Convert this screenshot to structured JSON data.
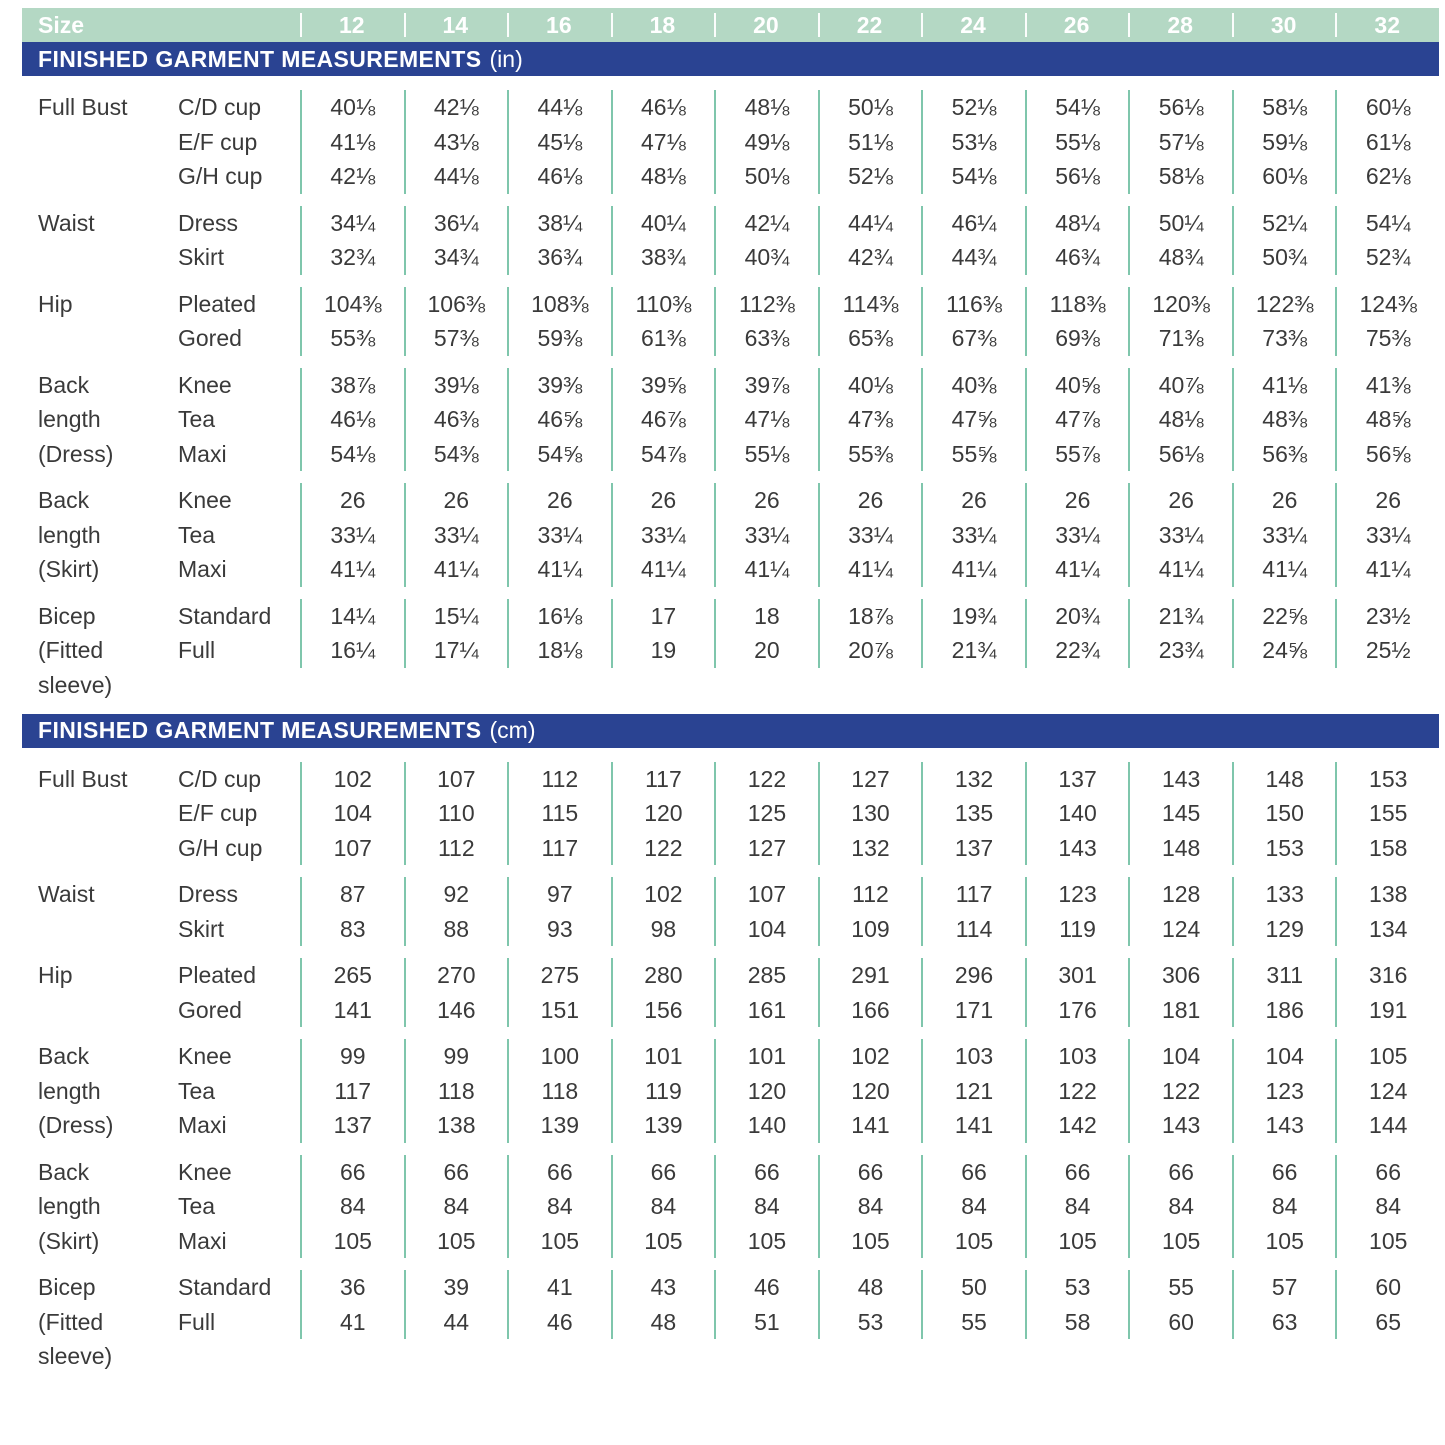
{
  "colors": {
    "mint": "#b4d8c4",
    "navy": "#2a4392",
    "teal_divider": "#7fc6ac",
    "text": "#3a3a3a"
  },
  "size_header": {
    "label": "Size",
    "sizes": [
      "12",
      "14",
      "16",
      "18",
      "20",
      "22",
      "24",
      "26",
      "28",
      "30",
      "32"
    ]
  },
  "tables": [
    {
      "title": "FINISHED GARMENT MEASUREMENTS",
      "unit": "(in)",
      "groups": [
        {
          "label_lines": [
            "Full Bust"
          ],
          "rows": [
            {
              "sub": "C/D cup",
              "values": [
                "40⅛",
                "42⅛",
                "44⅛",
                "46⅛",
                "48⅛",
                "50⅛",
                "52⅛",
                "54⅛",
                "56⅛",
                "58⅛",
                "60⅛"
              ]
            },
            {
              "sub": "E/F cup",
              "values": [
                "41⅛",
                "43⅛",
                "45⅛",
                "47⅛",
                "49⅛",
                "51⅛",
                "53⅛",
                "55⅛",
                "57⅛",
                "59⅛",
                "61⅛"
              ]
            },
            {
              "sub": "G/H cup",
              "values": [
                "42⅛",
                "44⅛",
                "46⅛",
                "48⅛",
                "50⅛",
                "52⅛",
                "54⅛",
                "56⅛",
                "58⅛",
                "60⅛",
                "62⅛"
              ]
            }
          ]
        },
        {
          "label_lines": [
            "Waist"
          ],
          "rows": [
            {
              "sub": "Dress",
              "values": [
                "34¼",
                "36¼",
                "38¼",
                "40¼",
                "42¼",
                "44¼",
                "46¼",
                "48¼",
                "50¼",
                "52¼",
                "54¼"
              ]
            },
            {
              "sub": "Skirt",
              "values": [
                "32¾",
                "34¾",
                "36¾",
                "38¾",
                "40¾",
                "42¾",
                "44¾",
                "46¾",
                "48¾",
                "50¾",
                "52¾"
              ]
            }
          ]
        },
        {
          "label_lines": [
            "Hip"
          ],
          "rows": [
            {
              "sub": "Pleated",
              "values": [
                "104⅜",
                "106⅜",
                "108⅜",
                "110⅜",
                "112⅜",
                "114⅜",
                "116⅜",
                "118⅜",
                "120⅜",
                "122⅜",
                "124⅜"
              ]
            },
            {
              "sub": "Gored",
              "values": [
                "55⅜",
                "57⅜",
                "59⅜",
                "61⅜",
                "63⅜",
                "65⅜",
                "67⅜",
                "69⅜",
                "71⅜",
                "73⅜",
                "75⅜"
              ]
            }
          ]
        },
        {
          "label_lines": [
            "Back",
            "length",
            "(Dress)"
          ],
          "rows": [
            {
              "sub": "Knee",
              "values": [
                "38⅞",
                "39⅛",
                "39⅜",
                "39⅝",
                "39⅞",
                "40⅛",
                "40⅜",
                "40⅝",
                "40⅞",
                "41⅛",
                "41⅜"
              ]
            },
            {
              "sub": "Tea",
              "values": [
                "46⅛",
                "46⅜",
                "46⅝",
                "46⅞",
                "47⅛",
                "47⅜",
                "47⅝",
                "47⅞",
                "48⅛",
                "48⅜",
                "48⅝"
              ]
            },
            {
              "sub": "Maxi",
              "values": [
                "54⅛",
                "54⅜",
                "54⅝",
                "54⅞",
                "55⅛",
                "55⅜",
                "55⅝",
                "55⅞",
                "56⅛",
                "56⅜",
                "56⅝"
              ]
            }
          ]
        },
        {
          "label_lines": [
            "Back",
            "length",
            "(Skirt)"
          ],
          "rows": [
            {
              "sub": "Knee",
              "values": [
                "26",
                "26",
                "26",
                "26",
                "26",
                "26",
                "26",
                "26",
                "26",
                "26",
                "26"
              ]
            },
            {
              "sub": "Tea",
              "values": [
                "33¼",
                "33¼",
                "33¼",
                "33¼",
                "33¼",
                "33¼",
                "33¼",
                "33¼",
                "33¼",
                "33¼",
                "33¼"
              ]
            },
            {
              "sub": "Maxi",
              "values": [
                "41¼",
                "41¼",
                "41¼",
                "41¼",
                "41¼",
                "41¼",
                "41¼",
                "41¼",
                "41¼",
                "41¼",
                "41¼"
              ]
            }
          ]
        },
        {
          "label_lines": [
            "Bicep",
            "(Fitted",
            "sleeve)"
          ],
          "rows": [
            {
              "sub": "Standard",
              "values": [
                "14¼",
                "15¼",
                "16⅛",
                "17",
                "18",
                "18⅞",
                "19¾",
                "20¾",
                "21¾",
                "22⅝",
                "23½"
              ]
            },
            {
              "sub": "Full",
              "values": [
                "16¼",
                "17¼",
                "18⅛",
                "19",
                "20",
                "20⅞",
                "21¾",
                "22¾",
                "23¾",
                "24⅝",
                "25½"
              ]
            }
          ]
        }
      ]
    },
    {
      "title": "FINISHED GARMENT MEASUREMENTS",
      "unit": "(cm)",
      "groups": [
        {
          "label_lines": [
            "Full Bust"
          ],
          "rows": [
            {
              "sub": "C/D cup",
              "values": [
                "102",
                "107",
                "112",
                "117",
                "122",
                "127",
                "132",
                "137",
                "143",
                "148",
                "153"
              ]
            },
            {
              "sub": "E/F cup",
              "values": [
                "104",
                "110",
                "115",
                "120",
                "125",
                "130",
                "135",
                "140",
                "145",
                "150",
                "155"
              ]
            },
            {
              "sub": "G/H cup",
              "values": [
                "107",
                "112",
                "117",
                "122",
                "127",
                "132",
                "137",
                "143",
                "148",
                "153",
                "158"
              ]
            }
          ]
        },
        {
          "label_lines": [
            "Waist"
          ],
          "rows": [
            {
              "sub": "Dress",
              "values": [
                "87",
                "92",
                "97",
                "102",
                "107",
                "112",
                "117",
                "123",
                "128",
                "133",
                "138"
              ]
            },
            {
              "sub": "Skirt",
              "values": [
                "83",
                "88",
                "93",
                "98",
                "104",
                "109",
                "114",
                "119",
                "124",
                "129",
                "134"
              ]
            }
          ]
        },
        {
          "label_lines": [
            "Hip"
          ],
          "rows": [
            {
              "sub": "Pleated",
              "values": [
                "265",
                "270",
                "275",
                "280",
                "285",
                "291",
                "296",
                "301",
                "306",
                "311",
                "316"
              ]
            },
            {
              "sub": "Gored",
              "values": [
                "141",
                "146",
                "151",
                "156",
                "161",
                "166",
                "171",
                "176",
                "181",
                "186",
                "191"
              ]
            }
          ]
        },
        {
          "label_lines": [
            "Back",
            "length",
            "(Dress)"
          ],
          "rows": [
            {
              "sub": "Knee",
              "values": [
                "99",
                "99",
                "100",
                "101",
                "101",
                "102",
                "103",
                "103",
                "104",
                "104",
                "105"
              ]
            },
            {
              "sub": "Tea",
              "values": [
                "117",
                "118",
                "118",
                "119",
                "120",
                "120",
                "121",
                "122",
                "122",
                "123",
                "124"
              ]
            },
            {
              "sub": "Maxi",
              "values": [
                "137",
                "138",
                "139",
                "139",
                "140",
                "141",
                "141",
                "142",
                "143",
                "143",
                "144"
              ]
            }
          ]
        },
        {
          "label_lines": [
            "Back",
            "length",
            "(Skirt)"
          ],
          "rows": [
            {
              "sub": "Knee",
              "values": [
                "66",
                "66",
                "66",
                "66",
                "66",
                "66",
                "66",
                "66",
                "66",
                "66",
                "66"
              ]
            },
            {
              "sub": "Tea",
              "values": [
                "84",
                "84",
                "84",
                "84",
                "84",
                "84",
                "84",
                "84",
                "84",
                "84",
                "84"
              ]
            },
            {
              "sub": "Maxi",
              "values": [
                "105",
                "105",
                "105",
                "105",
                "105",
                "105",
                "105",
                "105",
                "105",
                "105",
                "105"
              ]
            }
          ]
        },
        {
          "label_lines": [
            "Bicep",
            "(Fitted",
            "sleeve)"
          ],
          "rows": [
            {
              "sub": "Standard",
              "values": [
                "36",
                "39",
                "41",
                "43",
                "46",
                "48",
                "50",
                "53",
                "55",
                "57",
                "60"
              ]
            },
            {
              "sub": "Full",
              "values": [
                "41",
                "44",
                "46",
                "48",
                "51",
                "53",
                "55",
                "58",
                "60",
                "63",
                "65"
              ]
            }
          ]
        }
      ]
    }
  ]
}
